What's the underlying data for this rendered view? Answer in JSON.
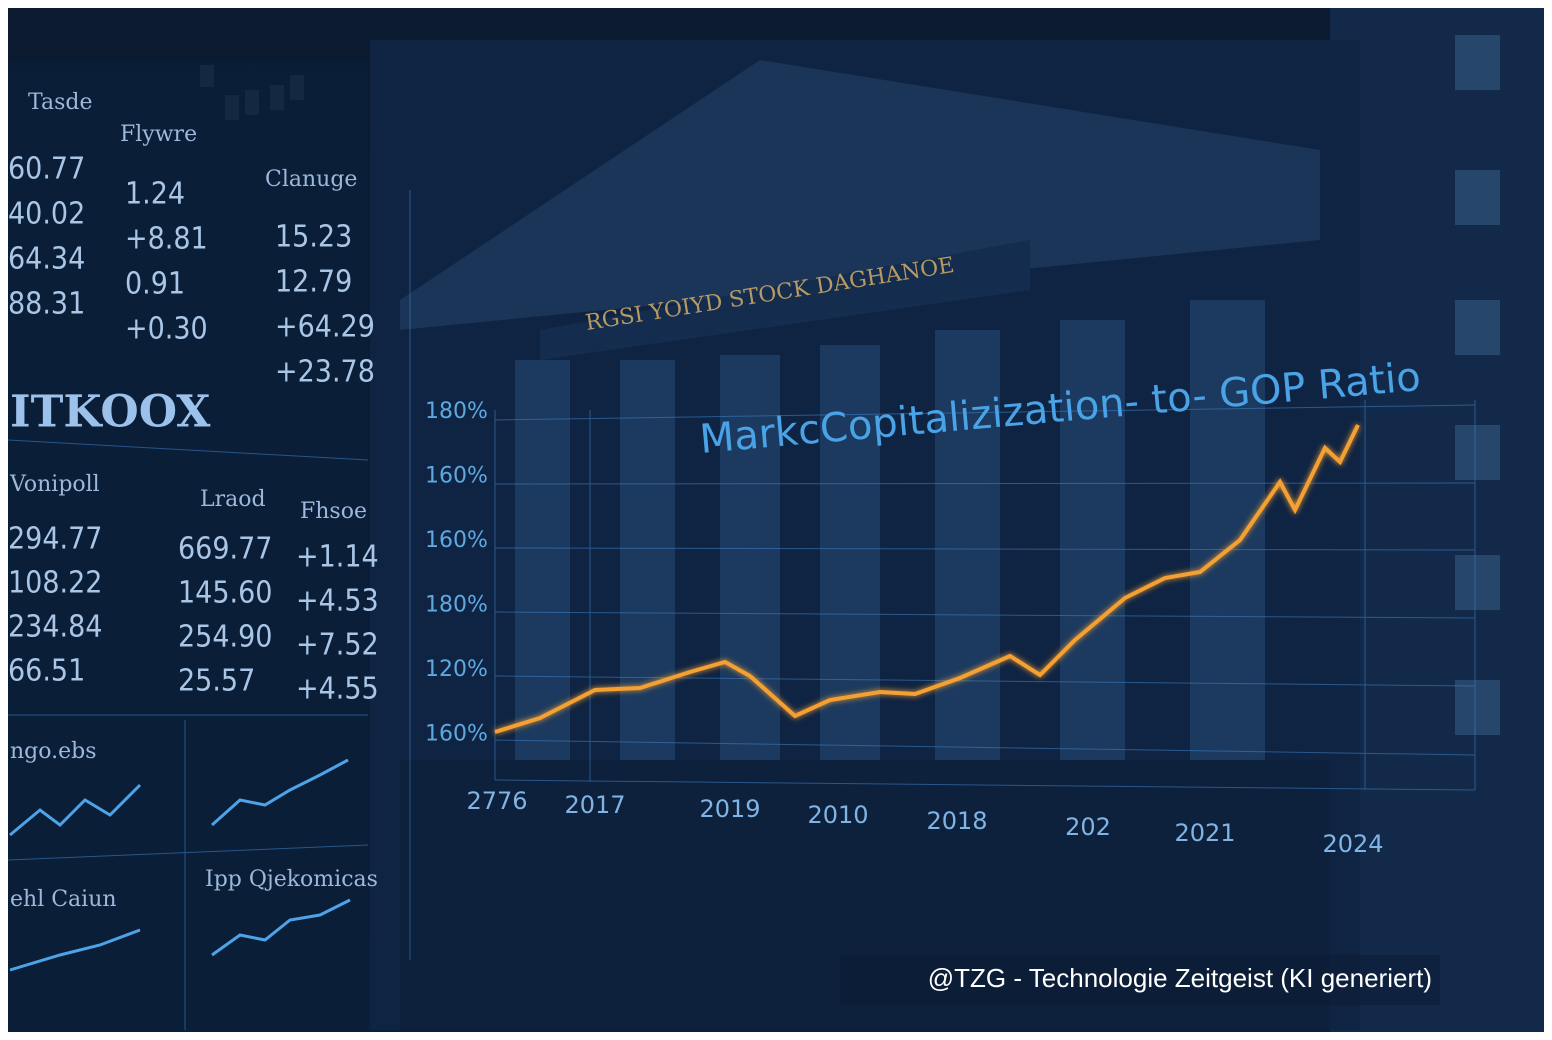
{
  "left_panel": {
    "table1": {
      "headers": [
        "Tasde",
        "Flywre",
        "Clanuge"
      ],
      "columns": [
        [
          "60.77",
          "40.02",
          "64.34",
          "88.31"
        ],
        [
          "1.24",
          "+8.81",
          "0.91",
          "+0.30"
        ],
        [
          "15.23",
          "12.79",
          "+64.29",
          "+23.78"
        ]
      ]
    },
    "brand": "ITKOOX",
    "table2": {
      "headers": [
        "Vonipoll",
        "Lraod",
        "Fhsoe"
      ],
      "columns": [
        [
          "294.77",
          "108.22",
          "234.84",
          "66.51"
        ],
        [
          "669.77",
          "145.60",
          "254.90",
          "25.57"
        ],
        [
          "+1.14",
          "+4.53",
          "+7.52",
          "+4.55"
        ]
      ]
    },
    "mini_chart_labels": [
      "ngo.ebs",
      "ehl Caiun",
      "Ipp Qjekomicas"
    ]
  },
  "building": {
    "inscription": "RGSI YOIYD STOCK DAGHANOE"
  },
  "overlay": {
    "title": "MarkcCopitalizization- to- GOP Ratio",
    "y_labels": [
      "180%",
      "160%",
      "160%",
      "180%",
      "120%",
      "160%"
    ],
    "x_labels": [
      "2776",
      "2017",
      "2019",
      "2010",
      "2018",
      "202",
      "2021",
      "2024"
    ]
  },
  "watermark": "@TZG - Technologie Zeitgeist (KI generiert)"
}
